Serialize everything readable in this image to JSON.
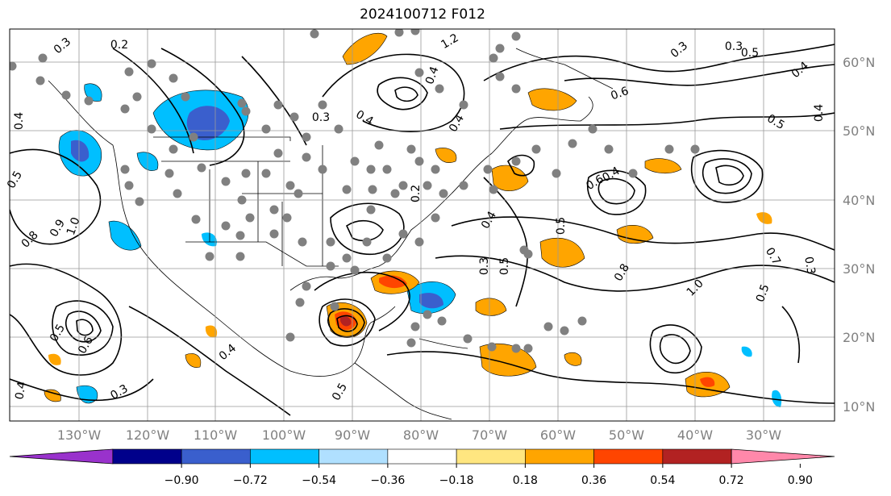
{
  "title": "2024100712 F012",
  "map": {
    "lon_labels": [
      "130°W",
      "120°W",
      "110°W",
      "100°W",
      "90°W",
      "80°W",
      "70°W",
      "60°W",
      "50°W",
      "40°W",
      "30°W"
    ],
    "lat_labels": [
      "60°N",
      "50°N",
      "40°N",
      "30°N",
      "20°N",
      "10°N"
    ],
    "label_color": "#808080",
    "grid": true,
    "contour_labels": [
      "0.3",
      "0.2",
      "0.4",
      "0.5",
      "0.8",
      "0.9",
      "1.0",
      "1.2",
      "0.4",
      "0.3",
      "0.5",
      "0.4",
      "0.6",
      "0.3",
      "0.4",
      "0.5",
      "0.4",
      "0.3",
      "0.4",
      "0.2",
      "0.4",
      "0.5",
      "0.3",
      "0.5",
      "0.8",
      "1.0",
      "0.7",
      "0.5",
      "0.3",
      "0.4",
      "0.5",
      "0.6",
      "0.3",
      "0.4",
      "0.5",
      "0.4",
      "0.6"
    ]
  },
  "colorbar": {
    "ticks": [
      "−0.90",
      "−0.72",
      "−0.54",
      "−0.36",
      "−0.18",
      "0.18",
      "0.36",
      "0.54",
      "0.72",
      "0.90"
    ],
    "colors": [
      "#9932cc",
      "#00008b",
      "#3a5fcd",
      "#00bfff",
      "#b0e0ff",
      "#ffffff",
      "#ffe680",
      "#ffa500",
      "#ff4500",
      "#b22222",
      "#ff88aa"
    ]
  }
}
